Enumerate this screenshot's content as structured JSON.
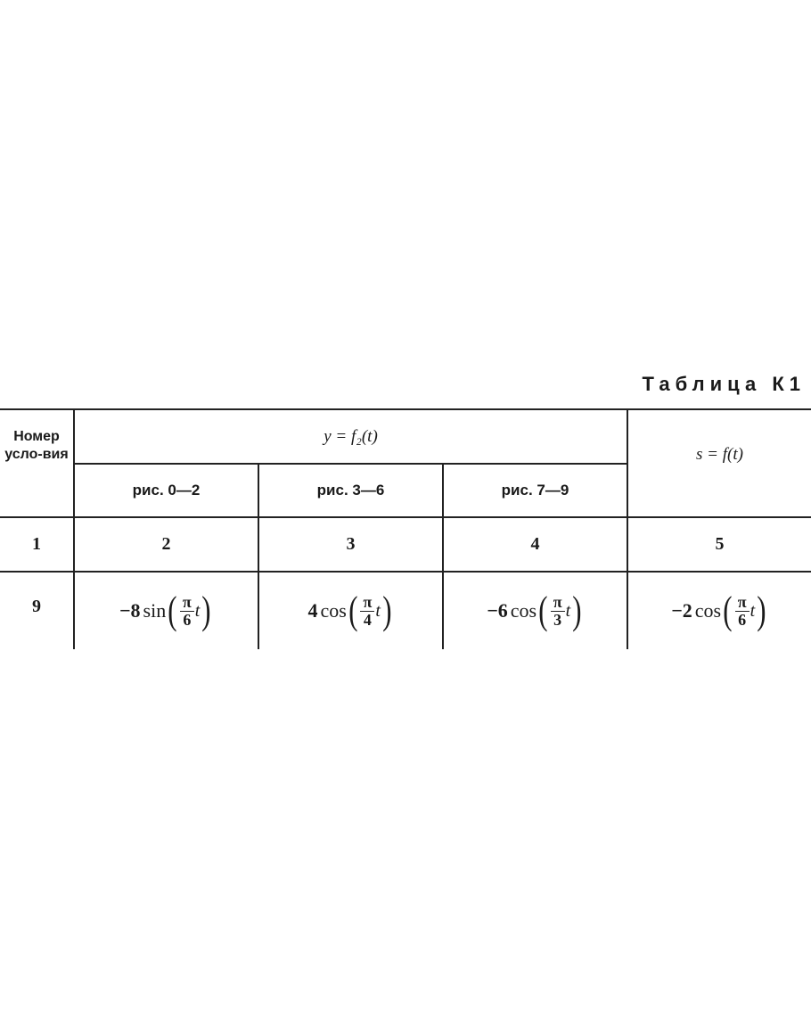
{
  "table_title": "Таблица К1",
  "header": {
    "condition_number": "Номер усло-вия",
    "y_group": "y = f₂(t)",
    "s_col": "s = f(t)",
    "sub": [
      "рис. 0—2",
      "рис. 3—6",
      "рис. 7—9"
    ]
  },
  "column_numbers": [
    "1",
    "2",
    "3",
    "4",
    "5"
  ],
  "row": {
    "condition": "9",
    "cells": [
      {
        "coef": "−8",
        "func": "sin",
        "num": "π",
        "den": "6",
        "var": "t"
      },
      {
        "coef": "4",
        "func": "cos",
        "num": "π",
        "den": "4",
        "var": "t"
      },
      {
        "coef": "−6",
        "func": "cos",
        "num": "π",
        "den": "3",
        "var": "t"
      },
      {
        "coef": "−2",
        "func": "cos",
        "num": "π",
        "den": "6",
        "var": "t"
      }
    ]
  }
}
